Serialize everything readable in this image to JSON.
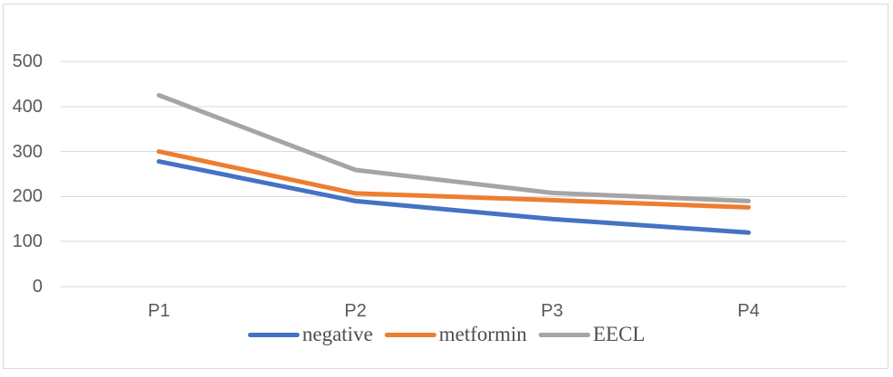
{
  "chart_data": {
    "type": "line",
    "title": "",
    "xlabel": "",
    "ylabel": "",
    "categories": [
      "P1",
      "P2",
      "P3",
      "P4"
    ],
    "series": [
      {
        "name": "negative",
        "color": "#4472C4",
        "values": [
          278,
          190,
          150,
          120
        ]
      },
      {
        "name": "metformin",
        "color": "#ED7D31",
        "values": [
          300,
          207,
          192,
          176
        ]
      },
      {
        "name": "EECL",
        "color": "#A5A5A5",
        "values": [
          425,
          259,
          208,
          190
        ]
      }
    ],
    "yticks": [
      500,
      400,
      300,
      200,
      100,
      0
    ],
    "ylim": [
      0,
      500
    ],
    "grid": true,
    "legend_position": "bottom"
  },
  "colors": {
    "gridline": "#D9D9D9",
    "frame_border": "#D9D9D9",
    "axis_text": "#595959",
    "legend_text": "#4D4D4D",
    "background": "#FFFFFF"
  }
}
